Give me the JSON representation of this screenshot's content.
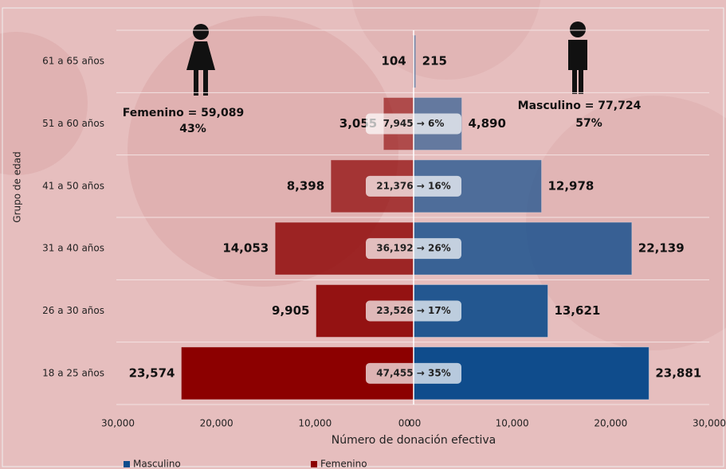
{
  "chart_data": {
    "type": "pyramid",
    "y_label": "Grupo de edad",
    "x_label": "Número de donación efectiva",
    "categories": [
      "18 a 25 años",
      "26 a 30 años",
      "31 a 40 años",
      "41 a 50 años",
      "51 a 60 años",
      "61 a 65 años"
    ],
    "series": [
      {
        "name": "Masculino",
        "color": "#0f4c8c",
        "direction": "right",
        "values": [
          23881,
          13621,
          22139,
          12978,
          4890,
          215
        ],
        "value_labels": [
          "23,881",
          "13,621",
          "22,139",
          "12,978",
          "4,890",
          "215"
        ]
      },
      {
        "name": "Femenino",
        "color": "#8c0000",
        "direction": "left",
        "values": [
          23574,
          9905,
          14053,
          8398,
          3055,
          104
        ],
        "value_labels": [
          "23,574",
          "9,905",
          "14,053",
          "8,398",
          "3,055",
          "104"
        ]
      }
    ],
    "center_labels": [
      "47,455 → 35%",
      "23,526 → 17%",
      "36,192 → 26%",
      "21,376 → 16%",
      "7,945 → 6%"
    ],
    "annotations": {
      "female_total": "Femenino = 59,089",
      "female_share": "43%",
      "male_total": "Masculino = 77,724",
      "male_share": "57%"
    },
    "xlim": [
      0,
      30000
    ],
    "xticks_left": [
      {
        "value": 30000,
        "label": "30,000"
      },
      {
        "value": 20000,
        "label": "20,000"
      },
      {
        "value": 10000,
        "label": "10,000"
      },
      {
        "value": 0,
        "label": "00"
      }
    ],
    "xticks_right": [
      {
        "value": 0,
        "label": "00"
      },
      {
        "value": 10000,
        "label": "10,000"
      },
      {
        "value": 20000,
        "label": "20,000"
      },
      {
        "value": 30000,
        "label": "30,000"
      }
    ],
    "legend": "bottom"
  }
}
